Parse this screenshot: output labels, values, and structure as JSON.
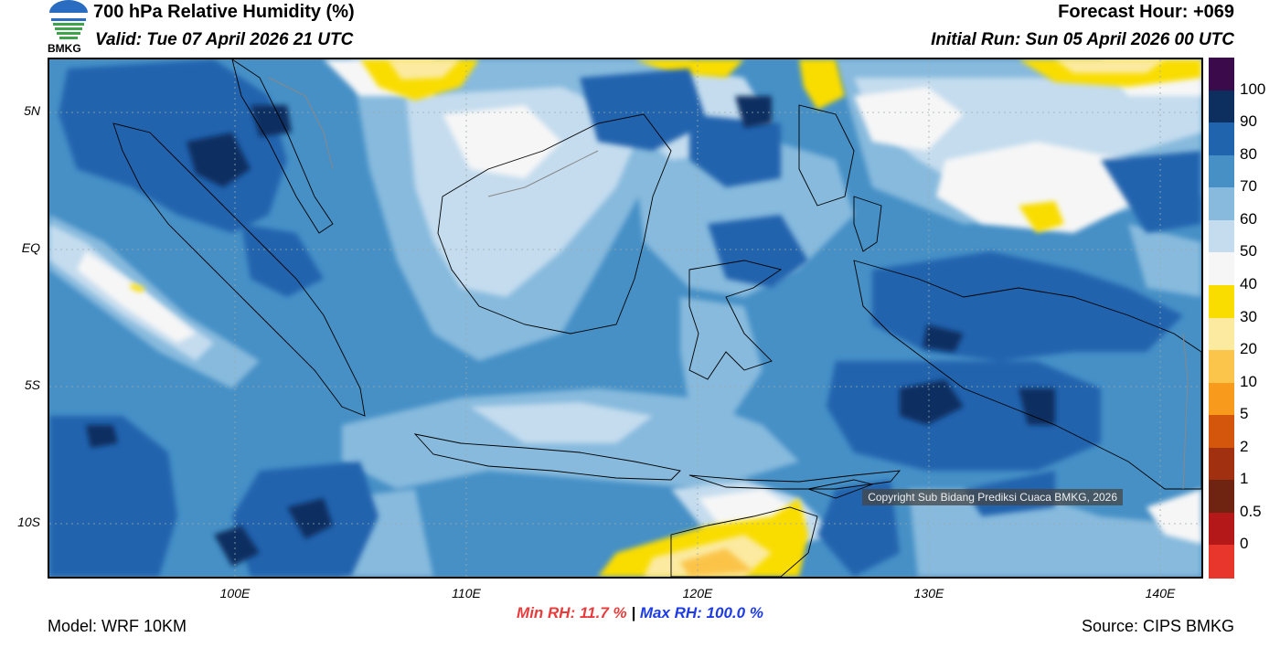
{
  "header": {
    "title": "700 hPa Relative Humidity (%)",
    "valid": "Valid: Tue 07 April 2026 21 UTC",
    "forecast_hour": "Forecast Hour: +069",
    "initial_run": "Initial Run: Sun 05 April 2026 00 UTC",
    "logo_text": "BMKG"
  },
  "map": {
    "lat_labels": [
      "5N",
      "EQ",
      "5S",
      "10S"
    ],
    "lon_labels": [
      "100E",
      "110E",
      "120E",
      "130E",
      "140E"
    ],
    "copyright": "Copyright Sub Bidang Prediksi Cuaca BMKG, 2026",
    "colors": {
      "rh_90_100": "#0c2f60",
      "rh_80_90": "#2164ae",
      "rh_70_80": "#4690c6",
      "rh_60_70": "#87badd",
      "rh_50_60": "#c4dcee",
      "rh_40_50": "#f6f6f6",
      "rh_30_40": "#f9dd00",
      "rh_20_30": "#fbeaa0",
      "rh_10_20": "#fbc44a"
    }
  },
  "colorbar": {
    "labels": [
      "100",
      "90",
      "80",
      "70",
      "60",
      "50",
      "40",
      "30",
      "20",
      "10",
      "5",
      "2",
      "1",
      "0.5",
      "0"
    ],
    "colors": [
      "#3a0a4a",
      "#0c2f60",
      "#2164ae",
      "#4690c6",
      "#87badd",
      "#c4dcee",
      "#f6f6f6",
      "#f9dd00",
      "#fbeaa0",
      "#fbc44a",
      "#f89a1c",
      "#d4560c",
      "#a03010",
      "#6e2410",
      "#b41818",
      "#e8362c"
    ]
  },
  "footer": {
    "model": "Model: WRF 10KM",
    "min_rh": "Min RH:  11.7 %",
    "separator": " | ",
    "max_rh": "Max RH: 100.0 %",
    "source": "Source: CIPS BMKG",
    "min_color": "#e83c3c",
    "max_color": "#1e3ce6"
  }
}
